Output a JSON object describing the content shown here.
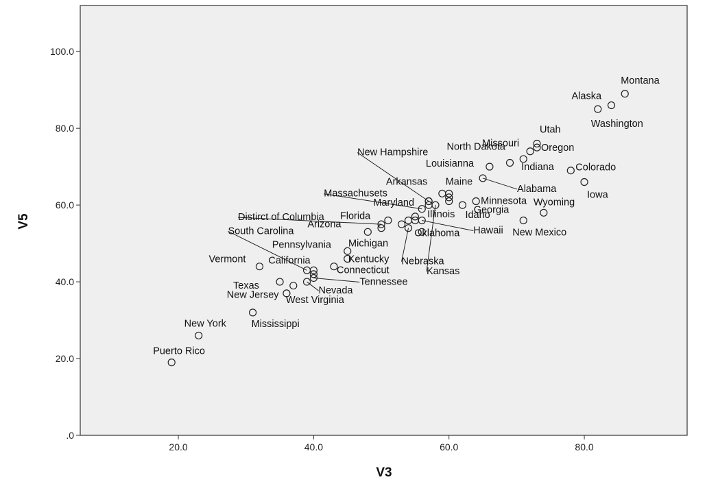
{
  "chart_data": {
    "type": "scatter",
    "xlabel": "V3",
    "ylabel": "V5",
    "xlim": [
      5.5,
      95.2
    ],
    "ylim": [
      0,
      112
    ],
    "x_ticks": [
      20,
      40,
      60,
      80
    ],
    "x_tick_labels": [
      "20.0",
      "40.0",
      "60.0",
      "80.0"
    ],
    "y_ticks": [
      0,
      20,
      40,
      60,
      80,
      100
    ],
    "y_tick_labels": [
      ".0",
      "20.0",
      "40.0",
      "60.0",
      "80.0",
      "100.0"
    ],
    "grid": false,
    "legend": "none",
    "colors": {
      "plot_background": "#efefef",
      "marker": "#222222",
      "frame": "#333333"
    },
    "points": [
      {
        "label": "Montana",
        "x": 86,
        "y": 89
      },
      {
        "label": "Alaska",
        "x": 84,
        "y": 86
      },
      {
        "label": "Washington",
        "x": 82,
        "y": 85
      },
      {
        "label": "Utah",
        "x": 73,
        "y": 76
      },
      {
        "label": "Missouri",
        "x": 72,
        "y": 74
      },
      {
        "label": "Oregon",
        "x": 73,
        "y": 75
      },
      {
        "label": "North Dakota",
        "x": 69,
        "y": 71
      },
      {
        "label": "Indiana",
        "x": 71,
        "y": 72
      },
      {
        "label": "Colorado",
        "x": 78,
        "y": 69
      },
      {
        "label": "Louisianna",
        "x": 66,
        "y": 70
      },
      {
        "label": "Alabama",
        "x": 65,
        "y": 67
      },
      {
        "label": "Iowa",
        "x": 80,
        "y": 66
      },
      {
        "label": "New Hampshire",
        "x": 57,
        "y": 61
      },
      {
        "label": "Arkansas",
        "x": 59,
        "y": 63
      },
      {
        "label": "Maine",
        "x": 60,
        "y": 63
      },
      {
        "label": "Georgia",
        "x": 60,
        "y": 61
      },
      {
        "label": "Massachusets",
        "x": 56,
        "y": 59
      },
      {
        "label": "Maryland",
        "x": 55,
        "y": 57
      },
      {
        "label": "Minnesota",
        "x": 64,
        "y": 61
      },
      {
        "label": "Wyoming",
        "x": 74,
        "y": 58
      },
      {
        "label": "Illinois",
        "x": 57,
        "y": 60
      },
      {
        "label": "Idaho",
        "x": 62,
        "y": 60
      },
      {
        "label": "Hawaii",
        "x": 56,
        "y": 56
      },
      {
        "label": "New Mexico",
        "x": 71,
        "y": 56
      },
      {
        "label": "Oklahoma",
        "x": 56,
        "y": 53
      },
      {
        "label": "Kansas",
        "x": 58,
        "y": 60
      },
      {
        "label": "Distirct of Columbia",
        "x": 50,
        "y": 55
      },
      {
        "label": "Florida",
        "x": 51,
        "y": 56
      },
      {
        "label": "South Carolina",
        "x": 39,
        "y": 43
      },
      {
        "label": "Arizona",
        "x": 48,
        "y": 53
      },
      {
        "label": "Michigan",
        "x": 50,
        "y": 54
      },
      {
        "label": "Nebraska",
        "x": 54,
        "y": 54
      },
      {
        "label": "Pennsylvania",
        "x": 45,
        "y": 48
      },
      {
        "label": "Kentucky",
        "x": 45,
        "y": 46
      },
      {
        "label": "Vermont",
        "x": 32,
        "y": 44
      },
      {
        "label": "California",
        "x": 40,
        "y": 43
      },
      {
        "label": "Connecticut",
        "x": 43,
        "y": 44
      },
      {
        "label": "Texas",
        "x": 35,
        "y": 40
      },
      {
        "label": "Nevada",
        "x": 39,
        "y": 40
      },
      {
        "label": "Tennessee",
        "x": 40,
        "y": 41
      },
      {
        "label": "New Jersey",
        "x": 37,
        "y": 39
      },
      {
        "label": "West Virginia",
        "x": 36,
        "y": 37
      },
      {
        "label": "Mississippi",
        "x": 31,
        "y": 32
      },
      {
        "label": "New York",
        "x": 23,
        "y": 26
      },
      {
        "label": "Puerto Rico",
        "x": 19,
        "y": 19
      }
    ],
    "unlabeled_points": [
      {
        "x": 54,
        "y": 56
      },
      {
        "x": 53,
        "y": 55
      },
      {
        "x": 60,
        "y": 62
      },
      {
        "x": 57,
        "y": 61
      },
      {
        "x": 55,
        "y": 56
      },
      {
        "x": 40,
        "y": 42
      }
    ]
  }
}
